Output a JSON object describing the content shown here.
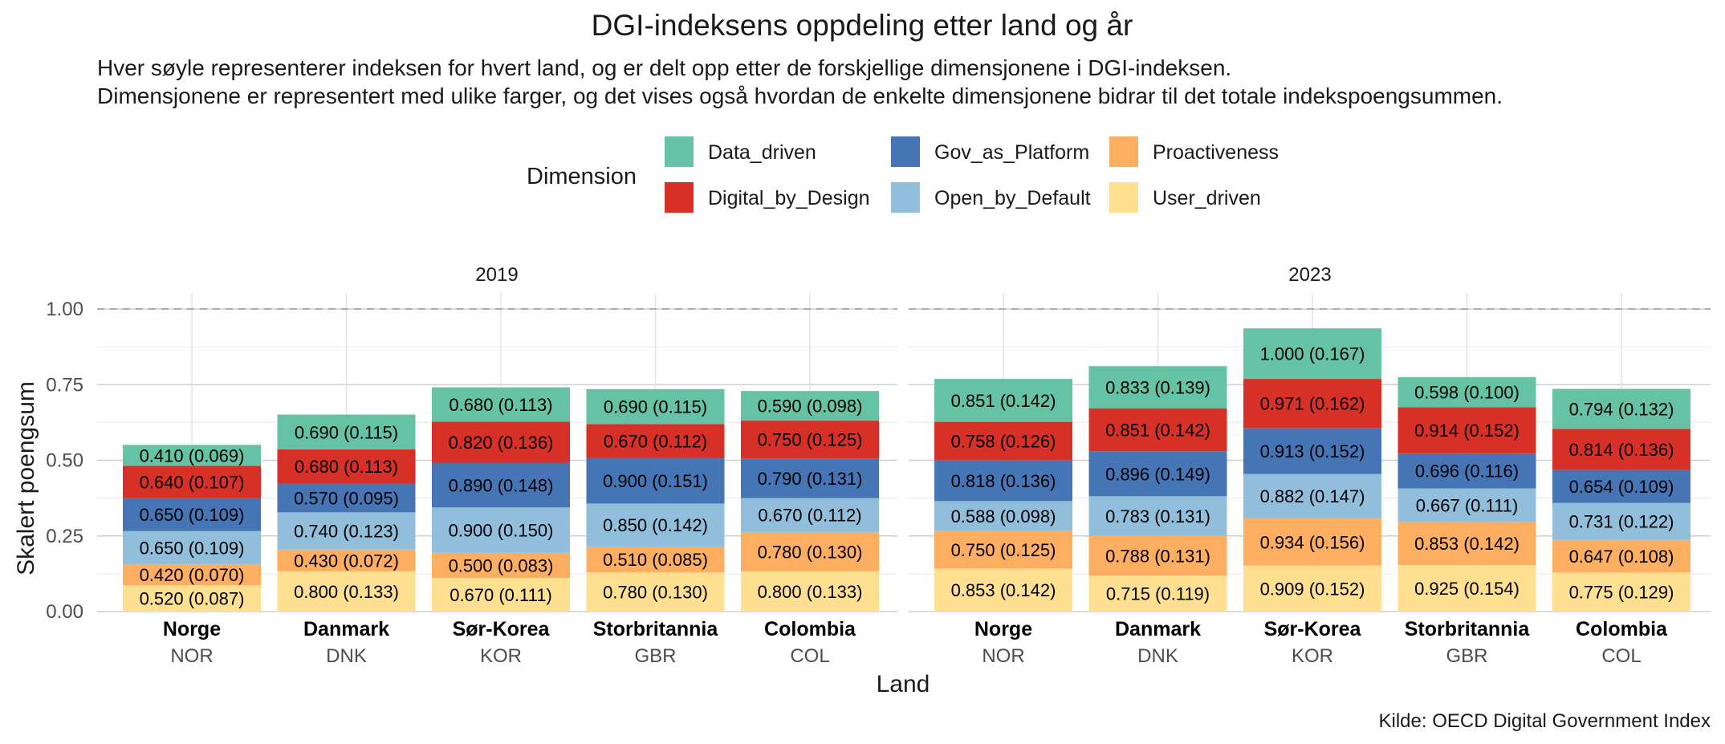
{
  "chart_data": {
    "type": "bar",
    "stacked": true,
    "title": "DGI-indeksens oppdeling etter land og år",
    "subtitle": [
      "Hver søyle representerer indeksen for hvert land, og er delt opp etter de forskjellige dimensjonene i DGI-indeksen.",
      "Dimensjonene er representert med ulike farger, og det vises også hvordan de enkelte dimensjonene bidrar til det totale indekspoengsummen."
    ],
    "caption": "Kilde: OECD Digital Government Index",
    "xlabel": "Land",
    "ylabel": "Skalert poengsum",
    "ylim": [
      0,
      1.05
    ],
    "yticks": [
      "0.00",
      "0.25",
      "0.50",
      "0.75",
      "1.00"
    ],
    "ytick_values": [
      0,
      0.25,
      0.5,
      0.75,
      1.0
    ],
    "reference_line": 1.0,
    "grid": true,
    "legend": {
      "title": "Dimension",
      "placement": "top",
      "entries": [
        {
          "name": "Data_driven",
          "color": "#66c2a5"
        },
        {
          "name": "Digital_by_Design",
          "color": "#d73027"
        },
        {
          "name": "Gov_as_Platform",
          "color": "#4575b4"
        },
        {
          "name": "Open_by_Default",
          "color": "#91bfdb"
        },
        {
          "name": "Proactiveness",
          "color": "#fdae61"
        },
        {
          "name": "User_driven",
          "color": "#fee090"
        }
      ]
    },
    "stack_order": [
      "User_driven",
      "Proactiveness",
      "Open_by_Default",
      "Gov_as_Platform",
      "Digital_by_Design",
      "Data_driven"
    ],
    "categories": [
      {
        "name": "Norge",
        "code": "NOR"
      },
      {
        "name": "Danmark",
        "code": "DNK"
      },
      {
        "name": "Sør-Korea",
        "code": "KOR"
      },
      {
        "name": "Storbritannia",
        "code": "GBR"
      },
      {
        "name": "Colombia",
        "code": "COL"
      }
    ],
    "panels": [
      {
        "year": "2019",
        "bars": [
          {
            "segments": [
              {
                "dim": "User_driven",
                "value": 0.087,
                "label": "0.520 (0.087)"
              },
              {
                "dim": "Proactiveness",
                "value": 0.07,
                "label": "0.420 (0.070)"
              },
              {
                "dim": "Open_by_Default",
                "value": 0.109,
                "label": "0.650 (0.109)"
              },
              {
                "dim": "Gov_as_Platform",
                "value": 0.109,
                "label": "0.650 (0.109)"
              },
              {
                "dim": "Digital_by_Design",
                "value": 0.107,
                "label": "0.640 (0.107)"
              },
              {
                "dim": "Data_driven",
                "value": 0.069,
                "label": "0.410 (0.069)"
              }
            ]
          },
          {
            "segments": [
              {
                "dim": "User_driven",
                "value": 0.133,
                "label": "0.800 (0.133)"
              },
              {
                "dim": "Proactiveness",
                "value": 0.072,
                "label": "0.430 (0.072)"
              },
              {
                "dim": "Open_by_Default",
                "value": 0.123,
                "label": "0.740 (0.123)"
              },
              {
                "dim": "Gov_as_Platform",
                "value": 0.095,
                "label": "0.570 (0.095)"
              },
              {
                "dim": "Digital_by_Design",
                "value": 0.113,
                "label": "0.680 (0.113)"
              },
              {
                "dim": "Data_driven",
                "value": 0.115,
                "label": "0.690 (0.115)"
              }
            ]
          },
          {
            "segments": [
              {
                "dim": "User_driven",
                "value": 0.111,
                "label": "0.670 (0.111)"
              },
              {
                "dim": "Proactiveness",
                "value": 0.083,
                "label": "0.500 (0.083)"
              },
              {
                "dim": "Open_by_Default",
                "value": 0.15,
                "label": "0.900 (0.150)"
              },
              {
                "dim": "Gov_as_Platform",
                "value": 0.148,
                "label": "0.890 (0.148)"
              },
              {
                "dim": "Digital_by_Design",
                "value": 0.136,
                "label": "0.820 (0.136)"
              },
              {
                "dim": "Data_driven",
                "value": 0.113,
                "label": "0.680 (0.113)"
              }
            ]
          },
          {
            "segments": [
              {
                "dim": "User_driven",
                "value": 0.13,
                "label": "0.780 (0.130)"
              },
              {
                "dim": "Proactiveness",
                "value": 0.085,
                "label": "0.510 (0.085)"
              },
              {
                "dim": "Open_by_Default",
                "value": 0.142,
                "label": "0.850 (0.142)"
              },
              {
                "dim": "Gov_as_Platform",
                "value": 0.151,
                "label": "0.900 (0.151)"
              },
              {
                "dim": "Digital_by_Design",
                "value": 0.112,
                "label": "0.670 (0.112)"
              },
              {
                "dim": "Data_driven",
                "value": 0.115,
                "label": "0.690 (0.115)"
              }
            ]
          },
          {
            "segments": [
              {
                "dim": "User_driven",
                "value": 0.133,
                "label": "0.800 (0.133)"
              },
              {
                "dim": "Proactiveness",
                "value": 0.13,
                "label": "0.780 (0.130)"
              },
              {
                "dim": "Open_by_Default",
                "value": 0.112,
                "label": "0.670 (0.112)"
              },
              {
                "dim": "Gov_as_Platform",
                "value": 0.131,
                "label": "0.790 (0.131)"
              },
              {
                "dim": "Digital_by_Design",
                "value": 0.125,
                "label": "0.750 (0.125)"
              },
              {
                "dim": "Data_driven",
                "value": 0.098,
                "label": "0.590 (0.098)"
              }
            ]
          }
        ]
      },
      {
        "year": "2023",
        "bars": [
          {
            "segments": [
              {
                "dim": "User_driven",
                "value": 0.142,
                "label": "0.853 (0.142)"
              },
              {
                "dim": "Proactiveness",
                "value": 0.125,
                "label": "0.750 (0.125)"
              },
              {
                "dim": "Open_by_Default",
                "value": 0.098,
                "label": "0.588 (0.098)"
              },
              {
                "dim": "Gov_as_Platform",
                "value": 0.136,
                "label": "0.818 (0.136)"
              },
              {
                "dim": "Digital_by_Design",
                "value": 0.126,
                "label": "0.758 (0.126)"
              },
              {
                "dim": "Data_driven",
                "value": 0.142,
                "label": "0.851 (0.142)"
              }
            ]
          },
          {
            "segments": [
              {
                "dim": "User_driven",
                "value": 0.119,
                "label": "0.715 (0.119)"
              },
              {
                "dim": "Proactiveness",
                "value": 0.131,
                "label": "0.788 (0.131)"
              },
              {
                "dim": "Open_by_Default",
                "value": 0.131,
                "label": "0.783 (0.131)"
              },
              {
                "dim": "Gov_as_Platform",
                "value": 0.149,
                "label": "0.896 (0.149)"
              },
              {
                "dim": "Digital_by_Design",
                "value": 0.142,
                "label": "0.851 (0.142)"
              },
              {
                "dim": "Data_driven",
                "value": 0.139,
                "label": "0.833 (0.139)"
              }
            ]
          },
          {
            "segments": [
              {
                "dim": "User_driven",
                "value": 0.152,
                "label": "0.909 (0.152)"
              },
              {
                "dim": "Proactiveness",
                "value": 0.156,
                "label": "0.934 (0.156)"
              },
              {
                "dim": "Open_by_Default",
                "value": 0.147,
                "label": "0.882 (0.147)"
              },
              {
                "dim": "Gov_as_Platform",
                "value": 0.152,
                "label": "0.913 (0.152)"
              },
              {
                "dim": "Digital_by_Design",
                "value": 0.162,
                "label": "0.971 (0.162)"
              },
              {
                "dim": "Data_driven",
                "value": 0.167,
                "label": "1.000 (0.167)"
              }
            ]
          },
          {
            "segments": [
              {
                "dim": "User_driven",
                "value": 0.154,
                "label": "0.925 (0.154)"
              },
              {
                "dim": "Proactiveness",
                "value": 0.142,
                "label": "0.853 (0.142)"
              },
              {
                "dim": "Open_by_Default",
                "value": 0.111,
                "label": "0.667 (0.111)"
              },
              {
                "dim": "Gov_as_Platform",
                "value": 0.116,
                "label": "0.696 (0.116)"
              },
              {
                "dim": "Digital_by_Design",
                "value": 0.152,
                "label": "0.914 (0.152)"
              },
              {
                "dim": "Data_driven",
                "value": 0.1,
                "label": "0.598 (0.100)"
              }
            ]
          },
          {
            "segments": [
              {
                "dim": "User_driven",
                "value": 0.129,
                "label": "0.775 (0.129)"
              },
              {
                "dim": "Proactiveness",
                "value": 0.108,
                "label": "0.647 (0.108)"
              },
              {
                "dim": "Open_by_Default",
                "value": 0.122,
                "label": "0.731 (0.122)"
              },
              {
                "dim": "Gov_as_Platform",
                "value": 0.109,
                "label": "0.654 (0.109)"
              },
              {
                "dim": "Digital_by_Design",
                "value": 0.136,
                "label": "0.814 (0.136)"
              },
              {
                "dim": "Data_driven",
                "value": 0.132,
                "label": "0.794 (0.132)"
              }
            ]
          }
        ]
      }
    ]
  }
}
